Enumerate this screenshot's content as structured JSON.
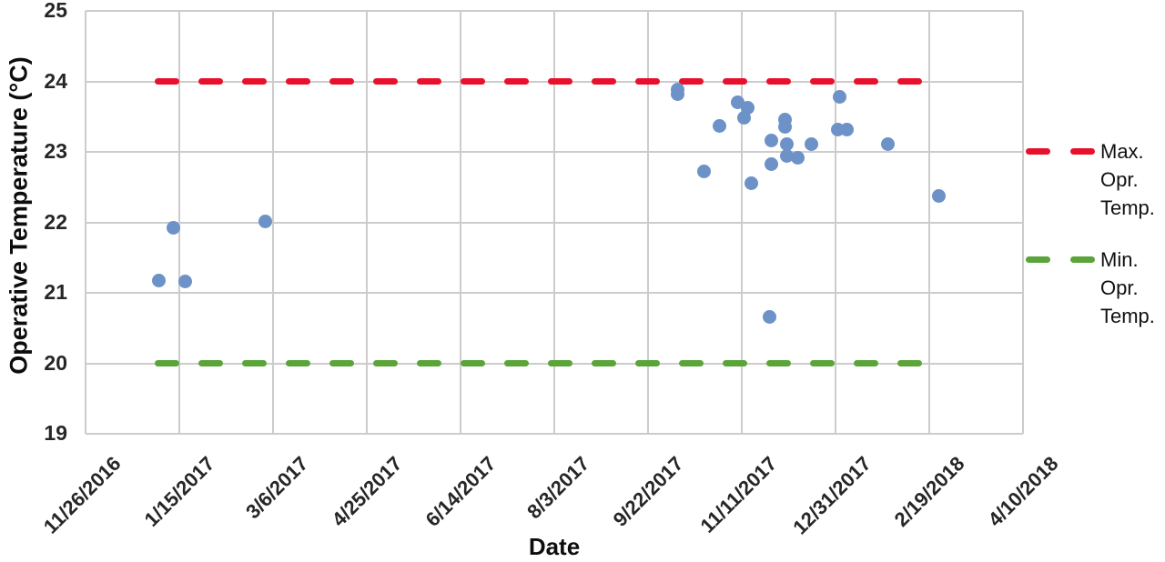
{
  "chart_data": {
    "type": "scatter",
    "title": "",
    "xlabel": "Date",
    "ylabel": "Operative Temperature (°C)",
    "grid": true,
    "legend_position": "right",
    "ylim": [
      19,
      25
    ],
    "y_ticks": [
      19,
      20,
      21,
      22,
      23,
      24,
      25
    ],
    "x_ticks": [
      "11/26/2016",
      "1/15/2017",
      "3/6/2017",
      "4/25/2017",
      "6/14/2017",
      "8/3/2017",
      "9/22/2017",
      "11/11/2017",
      "12/31/2017",
      "2/19/2018",
      "4/10/2018"
    ],
    "point_color": "#6d92c8",
    "points": [
      {
        "date": "1/4/2017",
        "temp": 21.17
      },
      {
        "date": "1/12/2017",
        "temp": 21.92
      },
      {
        "date": "1/18/2017",
        "temp": 21.16
      },
      {
        "date": "3/2/2017",
        "temp": 22.01
      },
      {
        "date": "10/8/2017",
        "temp": 23.88
      },
      {
        "date": "10/8/2017",
        "temp": 23.82
      },
      {
        "date": "10/22/2017",
        "temp": 22.72
      },
      {
        "date": "10/30/2017",
        "temp": 23.37
      },
      {
        "date": "11/9/2017",
        "temp": 23.7
      },
      {
        "date": "11/12/2017",
        "temp": 23.49
      },
      {
        "date": "11/14/2017",
        "temp": 23.62
      },
      {
        "date": "11/16/2017",
        "temp": 22.56
      },
      {
        "date": "11/26/2017",
        "temp": 20.66
      },
      {
        "date": "11/27/2017",
        "temp": 22.83
      },
      {
        "date": "11/27/2017",
        "temp": 23.16
      },
      {
        "date": "12/4/2017",
        "temp": 23.46
      },
      {
        "date": "12/4/2017",
        "temp": 23.36
      },
      {
        "date": "12/5/2017",
        "temp": 22.94
      },
      {
        "date": "12/5/2017",
        "temp": 23.11
      },
      {
        "date": "12/11/2017",
        "temp": 22.91
      },
      {
        "date": "12/18/2017",
        "temp": 23.11
      },
      {
        "date": "1/1/2018",
        "temp": 23.31
      },
      {
        "date": "1/2/2018",
        "temp": 23.78
      },
      {
        "date": "1/6/2018",
        "temp": 23.31
      },
      {
        "date": "1/28/2018",
        "temp": 23.11
      },
      {
        "date": "2/24/2018",
        "temp": 22.38
      }
    ],
    "ref_lines": [
      {
        "name": "Max. Opr. Temp.",
        "value": 24,
        "color": "#e8112d",
        "style": "dashed",
        "span": [
          "1/2/2017",
          "2/26/2018"
        ]
      },
      {
        "name": "Min. Opr. Temp.",
        "value": 20,
        "color": "#5ba43a",
        "style": "dashed",
        "span": [
          "1/2/2017",
          "2/26/2018"
        ]
      }
    ]
  },
  "axes": {
    "y_title": "Operative Temperature (°C)",
    "x_title": "Date"
  },
  "legend": {
    "max_label": "Max. Opr. Temp.",
    "min_label": "Min. Opr. Temp."
  }
}
